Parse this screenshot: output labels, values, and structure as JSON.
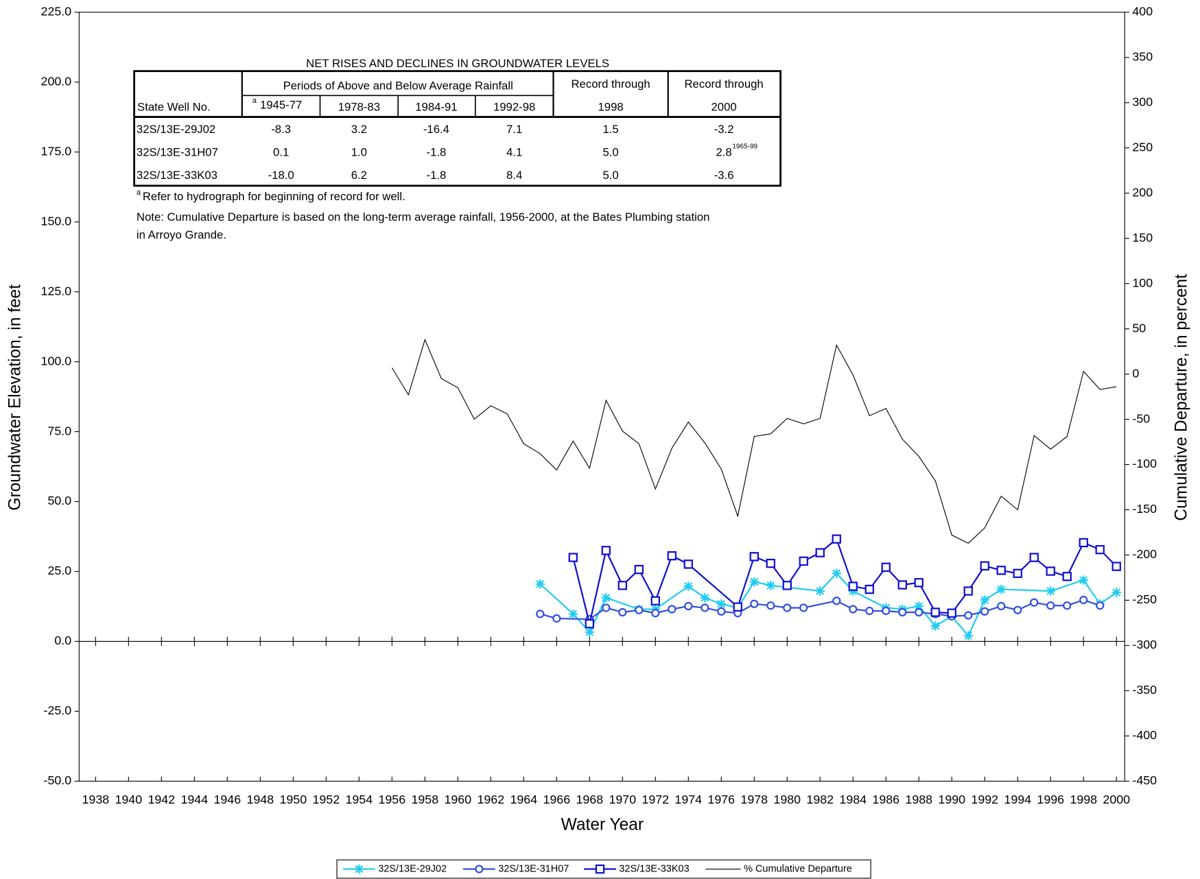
{
  "chart_data": {
    "type": "line",
    "xlabel": "Water Year",
    "ylabel": "Groundwater Elevation, in feet",
    "y2label": "Cumulative Departure, in percent",
    "xlim": [
      1937,
      2000.5
    ],
    "xticks": [
      1938,
      1940,
      1942,
      1944,
      1946,
      1948,
      1950,
      1952,
      1954,
      1956,
      1958,
      1960,
      1962,
      1964,
      1966,
      1968,
      1970,
      1972,
      1974,
      1976,
      1978,
      1980,
      1982,
      1984,
      1986,
      1988,
      1990,
      1992,
      1994,
      1996,
      1998,
      2000
    ],
    "ylim": [
      -50,
      225
    ],
    "yticks": [
      {
        "value": 225,
        "label": "225.0"
      },
      {
        "value": 200,
        "label": "200.0"
      },
      {
        "value": 175,
        "label": "175.0"
      },
      {
        "value": 150,
        "label": "150.0"
      },
      {
        "value": 125,
        "label": "125.0"
      },
      {
        "value": 100,
        "label": "100.0"
      },
      {
        "value": 75,
        "label": "75.0"
      },
      {
        "value": 50,
        "label": "50.0"
      },
      {
        "value": 25,
        "label": "25.0"
      },
      {
        "value": 0,
        "label": "0.0"
      },
      {
        "value": -25,
        "label": "-25.0"
      },
      {
        "value": -50,
        "label": "-50.0"
      }
    ],
    "y2lim": [
      -450,
      400
    ],
    "y2ticks": [
      400,
      350,
      300,
      250,
      200,
      150,
      100,
      50,
      0,
      -50,
      -100,
      -150,
      -200,
      -250,
      -300,
      -350,
      -400,
      -450
    ],
    "legend": "bottom",
    "series": [
      {
        "name": "32S/13E-29J02",
        "color": "#22ccee",
        "marker": "star",
        "axis": "y",
        "x": [
          1965,
          1967,
          1968,
          1969,
          1971,
          1972,
          1974,
          1975,
          1976,
          1977,
          1978,
          1979,
          1982,
          1983,
          1984,
          1986,
          1987,
          1988,
          1989,
          1990,
          1991,
          1992,
          1993,
          1996,
          1998,
          1999,
          2000
        ],
        "values": [
          20.5,
          9.8,
          3.3,
          15.6,
          11.5,
          11.5,
          19.7,
          15.6,
          13.4,
          12.0,
          21.3,
          20.0,
          18.0,
          24.3,
          18.0,
          12.0,
          11.5,
          12.6,
          5.5,
          9.0,
          2.0,
          14.8,
          18.6,
          18.0,
          21.9,
          13.4,
          17.5
        ]
      },
      {
        "name": "32S/13E-31H07",
        "color": "#3050e0",
        "marker": "circle",
        "axis": "y",
        "x": [
          1965,
          1966,
          1968,
          1969,
          1970,
          1971,
          1972,
          1973,
          1974,
          1975,
          1976,
          1977,
          1978,
          1979,
          1980,
          1981,
          1983,
          1984,
          1985,
          1986,
          1987,
          1988,
          1989,
          1990,
          1991,
          1992,
          1993,
          1994,
          1995,
          1996,
          1997,
          1998,
          1999
        ],
        "values": [
          9.8,
          8.2,
          7.9,
          12.0,
          10.4,
          11.2,
          10.1,
          11.5,
          12.6,
          12.0,
          10.7,
          10.1,
          13.4,
          12.8,
          12.0,
          12.0,
          14.5,
          11.5,
          10.9,
          10.9,
          10.4,
          10.4,
          9.8,
          9.0,
          9.3,
          10.7,
          12.6,
          11.2,
          13.9,
          12.8,
          12.8,
          14.8,
          12.8
        ]
      },
      {
        "name": "32S/13E-33K03",
        "color": "#1010d0",
        "marker": "square",
        "axis": "y",
        "x": [
          1967,
          1968,
          1969,
          1970,
          1971,
          1972,
          1973,
          1974,
          1977,
          1978,
          1979,
          1980,
          1981,
          1982,
          1983,
          1984,
          1985,
          1986,
          1987,
          1988,
          1989,
          1990,
          1991,
          1992,
          1993,
          1994,
          1995,
          1996,
          1997,
          1998,
          1999,
          2000
        ],
        "values": [
          30.0,
          6.3,
          32.5,
          20.0,
          25.7,
          14.5,
          30.6,
          27.6,
          12.3,
          30.3,
          27.9,
          20.0,
          28.7,
          31.7,
          36.6,
          19.7,
          18.6,
          26.5,
          20.2,
          21.0,
          10.4,
          10.1,
          18.0,
          27.0,
          25.4,
          24.3,
          30.0,
          25.1,
          23.2,
          35.3,
          32.8,
          26.8
        ]
      },
      {
        "name": "% Cumulative Departure",
        "color": "#000000",
        "marker": "none",
        "axis": "y2",
        "x": [
          1956,
          1957,
          1958,
          1959,
          1960,
          1961,
          1962,
          1963,
          1964,
          1965,
          1966,
          1967,
          1968,
          1969,
          1970,
          1971,
          1972,
          1973,
          1974,
          1975,
          1976,
          1977,
          1978,
          1979,
          1980,
          1981,
          1982,
          1983,
          1984,
          1985,
          1986,
          1987,
          1988,
          1989,
          1990,
          1991,
          1992,
          1993,
          1994,
          1995,
          1996,
          1997,
          1998,
          1999,
          2000
        ],
        "values": [
          7,
          -23,
          38,
          -5,
          -15,
          -50,
          -35,
          -44,
          -77,
          -88,
          -106,
          -74,
          -104,
          -29,
          -63,
          -77,
          -127,
          -82,
          -53,
          -76,
          -105,
          -157,
          -69,
          -66,
          -49,
          -55,
          -49,
          32,
          -1,
          -46,
          -38,
          -72,
          -91,
          -118,
          -178,
          -187,
          -170,
          -135,
          -150,
          -68,
          -83,
          -69,
          3,
          -17,
          -14
        ]
      }
    ],
    "table": {
      "title": "NET RISES AND DECLINES IN GROUNDWATER LEVELS",
      "well_header": "State Well No.",
      "periods_header": "Periods of Above and Below Average Rainfall",
      "record_headers": [
        "Record through",
        "Record through"
      ],
      "columns": [
        "1945-77",
        "1978-83",
        "1984-91",
        "1992-98",
        "1998",
        "2000"
      ],
      "footnote_mark": "a",
      "rows": [
        [
          "32S/13E-29J02",
          "-8.3",
          "3.2",
          "-16.4",
          "7.1",
          "1.5",
          "-3.2"
        ],
        [
          "32S/13E-31H07",
          "0.1",
          "1.0",
          "-1.8",
          "4.1",
          "5.0",
          "2.8"
        ],
        [
          "32S/13E-33K03",
          "-18.0",
          "6.2",
          "-1.8",
          "8.4",
          "5.0",
          "-3.6"
        ]
      ],
      "record_note": "1965-99",
      "footnote": "Refer to hydrograph for beginning of record for well.",
      "note": [
        "Note: Cumulative Departure is based on the long-term average rainfall, 1956-2000, at the Bates Plumbing station",
        "in Arroyo Grande."
      ]
    }
  }
}
